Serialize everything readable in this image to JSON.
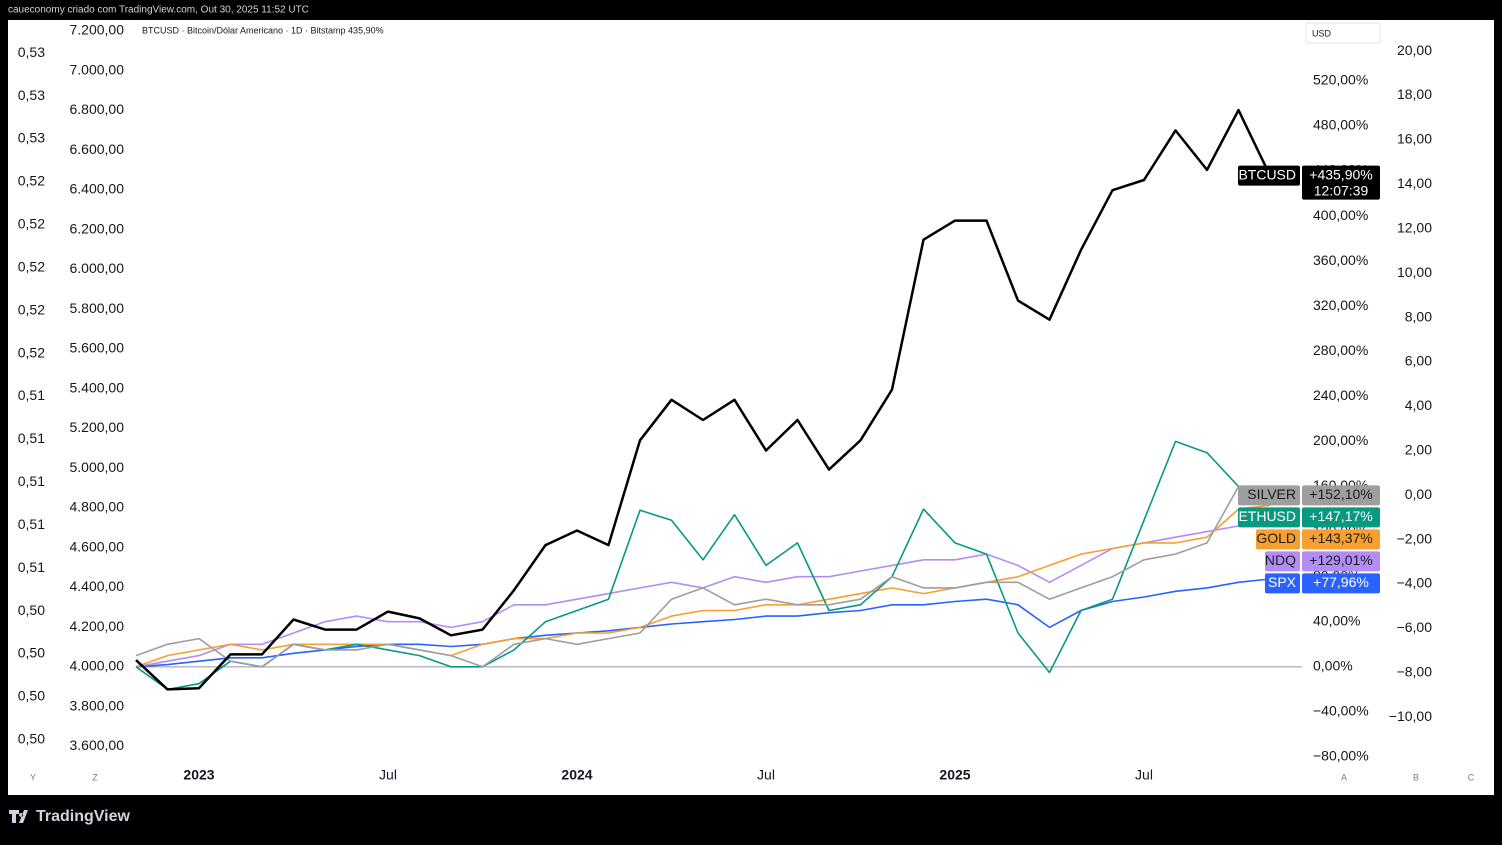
{
  "chart_data": {
    "type": "line",
    "attribution": "caueconomy criado com TradingView.com, Out 30, 2025 11:52 UTC",
    "title": "BTCUSD · Bitcoin/Dólar Americano · 1D · Bitstamp  435,90%",
    "currency": "USD",
    "countdown": "12:07:39",
    "brand": "TradingView",
    "axis_letters": [
      "Y",
      "Z",
      "A",
      "B",
      "C"
    ],
    "categories": [
      null,
      null,
      "2023",
      null,
      null,
      null,
      null,
      null,
      "Jul",
      null,
      null,
      null,
      null,
      null,
      "2024",
      null,
      null,
      null,
      null,
      null,
      "Jul",
      null,
      null,
      null,
      null,
      null,
      "2025",
      null,
      null,
      null,
      null,
      null,
      "Jul",
      null,
      null,
      null,
      null
    ],
    "ylim": [
      -96,
      574
    ],
    "yticks": [
      {
        "value": -80,
        "label": "−80,00%"
      },
      {
        "value": -40,
        "label": "−40,00%"
      },
      {
        "value": 0,
        "label": "0,00%"
      },
      {
        "value": 40,
        "label": "40,00%"
      },
      {
        "value": 80,
        "label": "80,00%"
      },
      {
        "value": 120,
        "label": "120,00%"
      },
      {
        "value": 160,
        "label": "160,00%"
      },
      {
        "value": 200,
        "label": "200,00%"
      },
      {
        "value": 240,
        "label": "240,00%"
      },
      {
        "value": 280,
        "label": "280,00%"
      },
      {
        "value": 320,
        "label": "320,00%"
      },
      {
        "value": 360,
        "label": "360,00%"
      },
      {
        "value": 400,
        "label": "400,00%"
      },
      {
        "value": 440,
        "label": "440,00%"
      },
      {
        "value": 480,
        "label": "480,00%"
      },
      {
        "value": 520,
        "label": "520,00%"
      }
    ],
    "y2lim": [
      -12.6,
      21.4
    ],
    "y2ticks": [
      {
        "value": -10,
        "label": "−10,00"
      },
      {
        "value": -8,
        "label": "−8,00"
      },
      {
        "value": -6,
        "label": "−6,00"
      },
      {
        "value": -4,
        "label": "−4,00"
      },
      {
        "value": -2,
        "label": "−2,00"
      },
      {
        "value": 0,
        "label": "0,00"
      },
      {
        "value": 2,
        "label": "2,00"
      },
      {
        "value": 4,
        "label": "4,00"
      },
      {
        "value": 6,
        "label": "6,00"
      },
      {
        "value": 8,
        "label": "8,00"
      },
      {
        "value": 10,
        "label": "10,00"
      },
      {
        "value": 12,
        "label": "12,00"
      },
      {
        "value": 14,
        "label": "14,00"
      },
      {
        "value": 16,
        "label": "16,00"
      },
      {
        "value": 18,
        "label": "18,00"
      },
      {
        "value": 20,
        "label": "20,00"
      }
    ],
    "y3lim": [
      3456,
      7255
    ],
    "y3ticks": [
      {
        "value": 3600,
        "label": "3.600,00"
      },
      {
        "value": 3800,
        "label": "3.800,00"
      },
      {
        "value": 4000,
        "label": "4.000,00"
      },
      {
        "value": 4200,
        "label": "4.200,00"
      },
      {
        "value": 4400,
        "label": "4.400,00"
      },
      {
        "value": 4600,
        "label": "4.600,00"
      },
      {
        "value": 4800,
        "label": "4.800,00"
      },
      {
        "value": 5000,
        "label": "5.000,00"
      },
      {
        "value": 5200,
        "label": "5.200,00"
      },
      {
        "value": 5400,
        "label": "5.400,00"
      },
      {
        "value": 5600,
        "label": "5.600,00"
      },
      {
        "value": 5800,
        "label": "5.800,00"
      },
      {
        "value": 6000,
        "label": "6.000,00"
      },
      {
        "value": 6200,
        "label": "6.200,00"
      },
      {
        "value": 6400,
        "label": "6.400,00"
      },
      {
        "value": 6600,
        "label": "6.600,00"
      },
      {
        "value": 6800,
        "label": "6.800,00"
      },
      {
        "value": 7000,
        "label": "7.000,00"
      },
      {
        "value": 7200,
        "label": "7.200,00"
      }
    ],
    "y4lim": [
      0.4945,
      0.5332
    ],
    "y4ticks": [
      {
        "value": 0.4963,
        "label": "0,50"
      },
      {
        "value": 0.4985,
        "label": "0,50"
      },
      {
        "value": 0.5007,
        "label": "0,50"
      },
      {
        "value": 0.5029,
        "label": "0,50"
      },
      {
        "value": 0.5051,
        "label": "0,51"
      },
      {
        "value": 0.5073,
        "label": "0,51"
      },
      {
        "value": 0.5095,
        "label": "0,51"
      },
      {
        "value": 0.5117,
        "label": "0,51"
      },
      {
        "value": 0.5139,
        "label": "0,51"
      },
      {
        "value": 0.5161,
        "label": "0,52"
      },
      {
        "value": 0.5183,
        "label": "0,52"
      },
      {
        "value": 0.5205,
        "label": "0,52"
      },
      {
        "value": 0.5227,
        "label": "0,52"
      },
      {
        "value": 0.5249,
        "label": "0,52"
      },
      {
        "value": 0.5271,
        "label": "0,53"
      },
      {
        "value": 0.5293,
        "label": "0,53"
      },
      {
        "value": 0.5315,
        "label": "0,53"
      }
    ],
    "series": [
      {
        "name": "BTCUSD",
        "color": "#000000",
        "text_color": "#ffffff",
        "end_label": "+435,90%",
        "values": [
          6,
          -20,
          -19,
          11,
          11,
          42,
          33,
          33,
          49,
          43,
          28,
          33,
          68,
          108,
          121,
          108,
          201,
          237,
          219,
          237,
          192,
          219,
          175,
          201,
          246,
          379,
          396,
          396,
          325,
          308,
          370,
          423,
          432,
          476,
          441,
          494,
          435.9
        ]
      },
      {
        "name": "SILVER",
        "color": "#9e9e9e",
        "text_color": "#1e1e1e",
        "end_label": "+152,10%",
        "values": [
          10,
          20,
          25,
          5,
          0,
          20,
          15,
          15,
          20,
          15,
          10,
          0,
          20,
          25,
          20,
          25,
          30,
          60,
          70,
          55,
          60,
          55,
          55,
          60,
          80,
          70,
          70,
          75,
          75,
          60,
          70,
          80,
          95,
          100,
          110,
          160,
          152.1
        ]
      },
      {
        "name": "ETHUSD",
        "color": "#089981",
        "text_color": "#ffffff",
        "end_label": "+147,17%",
        "values": [
          0,
          -20,
          -15,
          5,
          0,
          20,
          15,
          20,
          15,
          10,
          0,
          0,
          15,
          40,
          50,
          60,
          139,
          130,
          95,
          135,
          90,
          110,
          50,
          55,
          80,
          140,
          110,
          100,
          30,
          -5,
          50,
          60,
          130,
          200,
          190,
          160,
          147.17
        ]
      },
      {
        "name": "GOLD",
        "color": "#f7a031",
        "text_color": "#1e1e1e",
        "end_label": "+143,37%",
        "values": [
          0,
          10,
          15,
          20,
          15,
          20,
          20,
          20,
          20,
          15,
          10,
          20,
          25,
          25,
          30,
          30,
          35,
          45,
          50,
          50,
          55,
          55,
          60,
          65,
          70,
          65,
          70,
          75,
          80,
          90,
          100,
          105,
          110,
          110,
          115,
          140,
          143.37
        ]
      },
      {
        "name": "NDQ",
        "color": "#b38cf5",
        "text_color": "#1e1e1e",
        "end_label": "+129,01%",
        "values": [
          0,
          5,
          10,
          20,
          20,
          30,
          40,
          45,
          40,
          40,
          35,
          40,
          55,
          55,
          60,
          65,
          70,
          75,
          70,
          80,
          75,
          80,
          80,
          85,
          90,
          95,
          95,
          100,
          90,
          75,
          90,
          105,
          110,
          115,
          120,
          125,
          129.01
        ]
      },
      {
        "name": "SPX",
        "color": "#2962ff",
        "text_color": "#ffffff",
        "end_label": "+77,96%",
        "values": [
          0,
          2,
          5,
          8,
          8,
          12,
          15,
          18,
          20,
          20,
          18,
          20,
          25,
          28,
          30,
          32,
          35,
          38,
          40,
          42,
          45,
          45,
          48,
          50,
          55,
          55,
          58,
          60,
          55,
          35,
          50,
          58,
          62,
          67,
          70,
          75,
          77.96
        ]
      }
    ]
  }
}
